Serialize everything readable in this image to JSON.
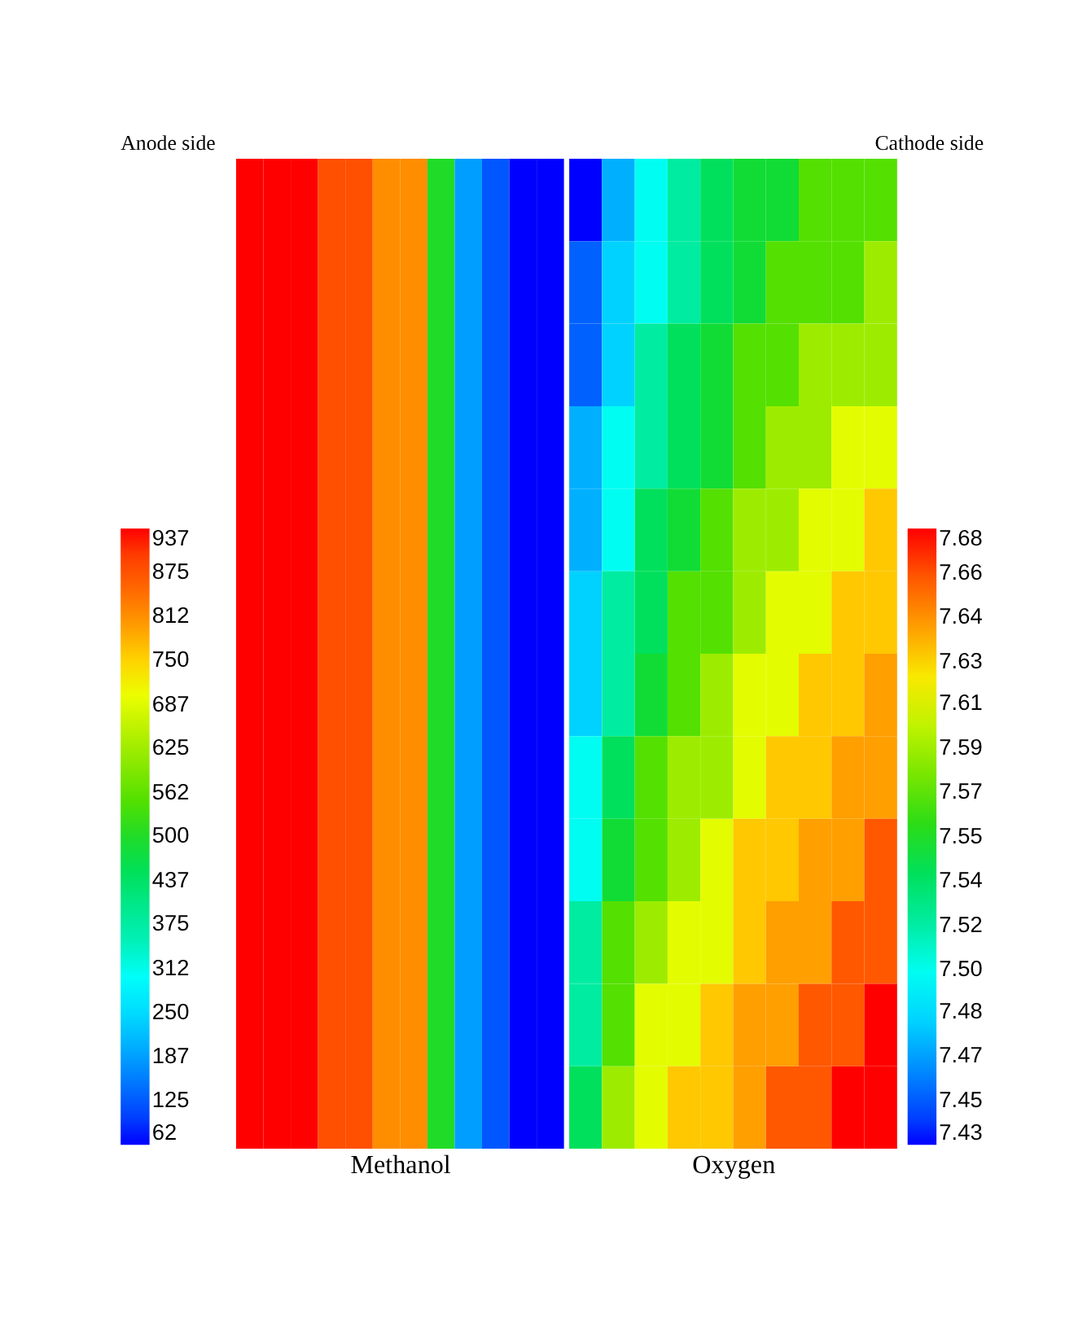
{
  "chart_data": [
    {
      "type": "heatmap",
      "title": "Anode side",
      "xlabel": "Methanol",
      "categories": [
        null,
        null,
        null,
        null,
        null,
        null,
        null,
        null,
        null,
        null,
        null,
        null
      ],
      "y_categories": [
        null,
        null,
        null,
        null,
        null,
        null,
        null,
        null
      ],
      "cells": [
        [
          937,
          937,
          937,
          875,
          875,
          812,
          812,
          500,
          187,
          125,
          62,
          62
        ],
        [
          937,
          937,
          937,
          875,
          875,
          812,
          812,
          500,
          187,
          125,
          62,
          62
        ],
        [
          937,
          937,
          937,
          875,
          875,
          812,
          812,
          500,
          187,
          125,
          62,
          62
        ],
        [
          937,
          937,
          937,
          875,
          875,
          812,
          812,
          500,
          187,
          125,
          62,
          62
        ],
        [
          937,
          937,
          937,
          875,
          875,
          812,
          812,
          500,
          187,
          125,
          62,
          62
        ],
        [
          937,
          937,
          937,
          875,
          875,
          812,
          812,
          500,
          187,
          125,
          62,
          62
        ],
        [
          937,
          937,
          937,
          875,
          875,
          812,
          812,
          500,
          187,
          125,
          62,
          62
        ],
        [
          937,
          937,
          937,
          875,
          875,
          812,
          812,
          500,
          187,
          125,
          62,
          62
        ]
      ],
      "clim": [
        62,
        937
      ],
      "cticks": [
        62,
        125,
        187,
        250,
        312,
        375,
        437,
        500,
        562,
        625,
        687,
        750,
        812,
        875,
        937
      ]
    },
    {
      "type": "heatmap",
      "title": "Cathode side",
      "xlabel": "Oxygen",
      "categories": [
        null,
        null,
        null,
        null,
        null,
        null,
        null,
        null,
        null,
        null
      ],
      "y_categories": [
        null,
        null,
        null,
        null,
        null,
        null,
        null,
        null,
        null,
        null,
        null,
        null
      ],
      "cells": [
        [
          7.43,
          7.47,
          7.5,
          7.52,
          7.54,
          7.55,
          7.55,
          7.57,
          7.57,
          7.57
        ],
        [
          7.45,
          7.48,
          7.5,
          7.52,
          7.54,
          7.55,
          7.57,
          7.57,
          7.57,
          7.59
        ],
        [
          7.45,
          7.48,
          7.52,
          7.54,
          7.55,
          7.57,
          7.57,
          7.59,
          7.59,
          7.59
        ],
        [
          7.47,
          7.5,
          7.52,
          7.54,
          7.55,
          7.57,
          7.59,
          7.59,
          7.61,
          7.61
        ],
        [
          7.47,
          7.5,
          7.54,
          7.55,
          7.57,
          7.59,
          7.59,
          7.61,
          7.61,
          7.63
        ],
        [
          7.48,
          7.52,
          7.54,
          7.57,
          7.57,
          7.59,
          7.61,
          7.61,
          7.63,
          7.63
        ],
        [
          7.48,
          7.52,
          7.55,
          7.57,
          7.59,
          7.61,
          7.61,
          7.63,
          7.63,
          7.64
        ],
        [
          7.5,
          7.54,
          7.57,
          7.59,
          7.59,
          7.61,
          7.63,
          7.63,
          7.64,
          7.64
        ],
        [
          7.5,
          7.55,
          7.57,
          7.59,
          7.61,
          7.63,
          7.63,
          7.64,
          7.64,
          7.66
        ],
        [
          7.52,
          7.57,
          7.59,
          7.61,
          7.61,
          7.63,
          7.64,
          7.64,
          7.66,
          7.66
        ],
        [
          7.52,
          7.57,
          7.61,
          7.61,
          7.63,
          7.64,
          7.64,
          7.66,
          7.66,
          7.68
        ],
        [
          7.54,
          7.59,
          7.61,
          7.63,
          7.63,
          7.64,
          7.66,
          7.66,
          7.68,
          7.68
        ]
      ],
      "clim": [
        7.43,
        7.68
      ],
      "cticks": [
        7.43,
        {
          "value": 7.448,
          "label": "7.45"
        },
        {
          "value": 7.466,
          "label": "7.47"
        },
        {
          "value": 7.484,
          "label": "7.48"
        },
        {
          "value": 7.501,
          "label": "7.50"
        },
        {
          "value": 7.519,
          "label": "7.52"
        },
        {
          "value": 7.537,
          "label": "7.54"
        },
        {
          "value": 7.555,
          "label": "7.55"
        },
        {
          "value": 7.573,
          "label": "7.57"
        },
        {
          "value": 7.591,
          "label": "7.59"
        },
        {
          "value": 7.609,
          "label": "7.61"
        },
        {
          "value": 7.626,
          "label": "7.63"
        },
        {
          "value": 7.644,
          "label": "7.64"
        },
        {
          "value": 7.662,
          "label": "7.66"
        },
        7.68
      ]
    }
  ]
}
